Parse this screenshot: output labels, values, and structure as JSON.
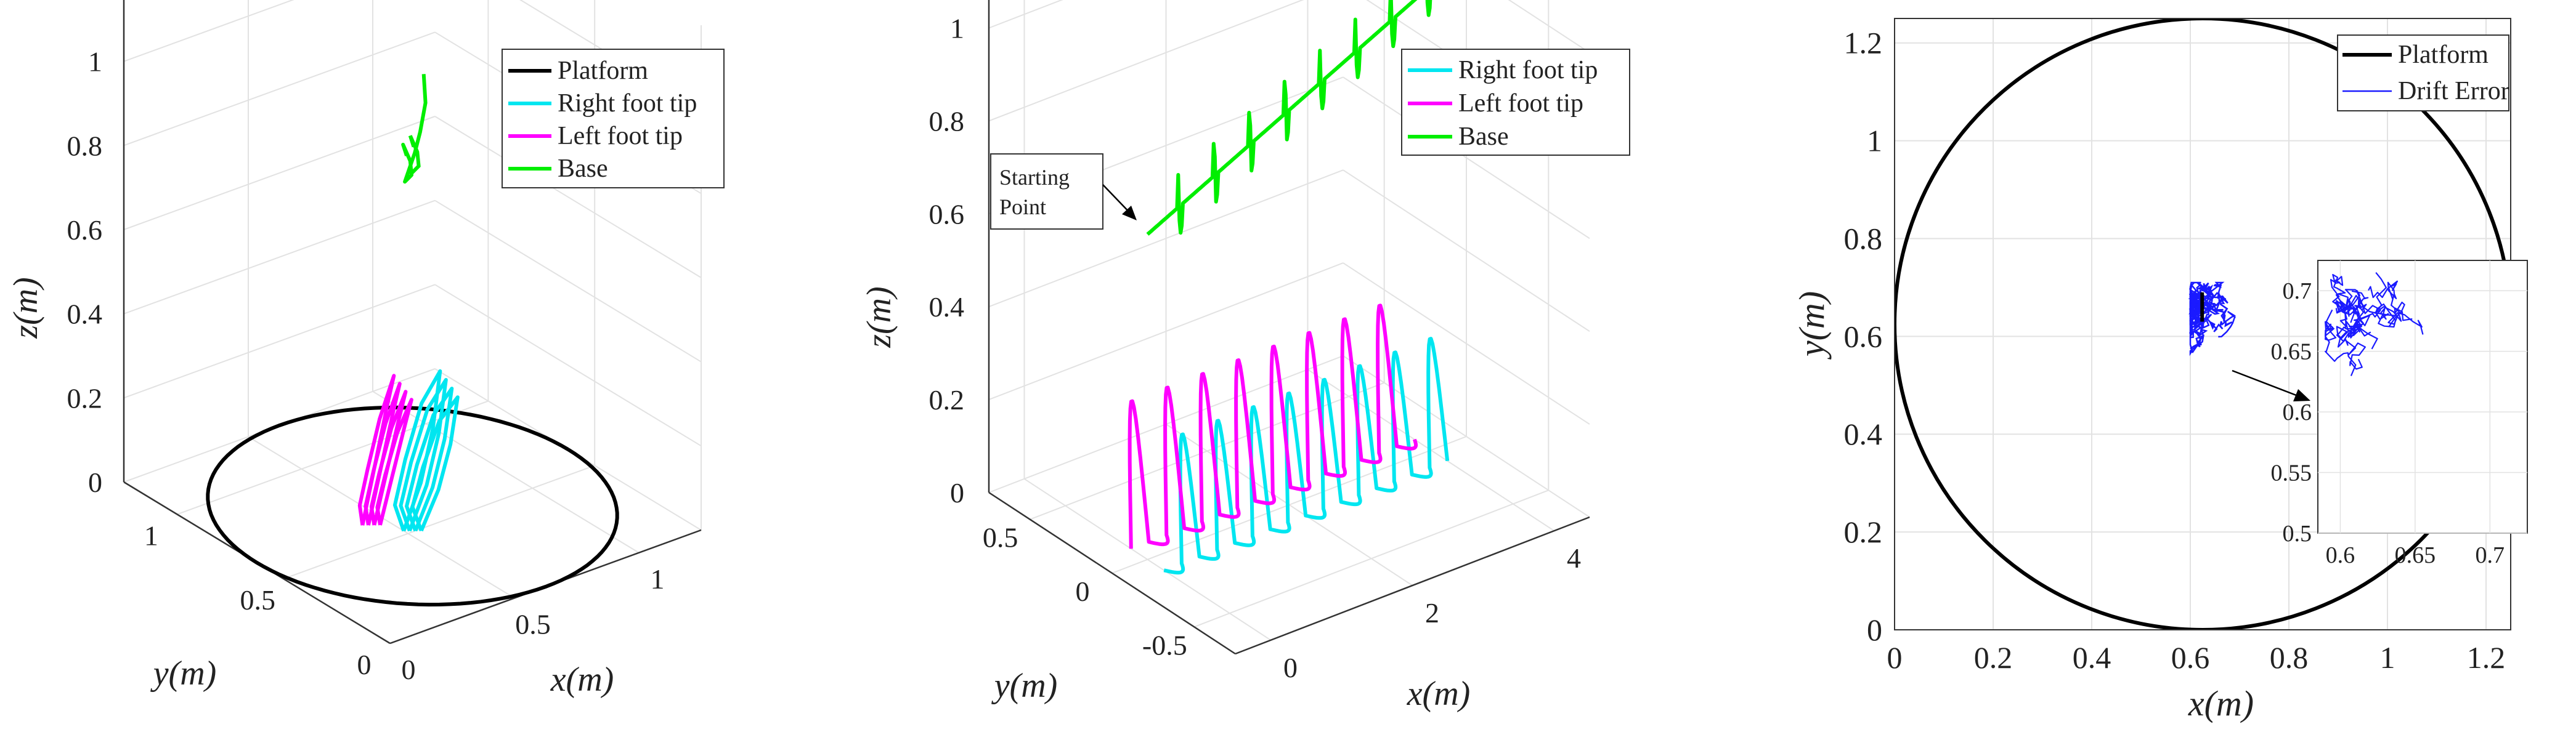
{
  "colors": {
    "platform": "#000000",
    "right_foot": "#00e6f0",
    "left_foot": "#ff00ff",
    "base": "#00ee00",
    "drift": "#1a1aff",
    "grid": "#e2e2e2",
    "axis": "#333333"
  },
  "chart_data": [
    {
      "type": "line",
      "projection": "3d",
      "title": "",
      "xlabel": "x(m)",
      "ylabel": "y(m)",
      "zlabel": "z(m)",
      "xlim": [
        0,
        1.25
      ],
      "ylim": [
        0,
        1.25
      ],
      "zlim": [
        0,
        1.2
      ],
      "x_ticks": [
        "0",
        "0.5",
        "1"
      ],
      "y_ticks": [
        "0",
        "0.5",
        "1"
      ],
      "z_ticks": [
        "0",
        "0.2",
        "0.4",
        "0.6",
        "0.8",
        "1"
      ],
      "legend": {
        "placement": "top-right",
        "entries": [
          "Platform",
          "Right foot tip",
          "Left foot tip",
          "Base"
        ]
      },
      "series": [
        {
          "name": "Platform",
          "circle_center_xy": [
            0.625,
            0.625
          ],
          "radius": 0.625,
          "z": 0
        },
        {
          "name": "Right foot tip",
          "x": [
            0.5,
            0.62,
            0.72,
            0.8,
            0.76,
            0.66,
            0.55,
            0.5
          ],
          "y": [
            0.52,
            0.58,
            0.64,
            0.7,
            0.74,
            0.7,
            0.62,
            0.52
          ],
          "z": [
            0.0,
            0.07,
            0.16,
            0.26,
            0.18,
            0.08,
            0.02,
            0.0
          ]
        },
        {
          "name": "Left foot tip",
          "x": [
            0.42,
            0.52,
            0.62,
            0.7,
            0.66,
            0.56,
            0.46,
            0.42
          ],
          "y": [
            0.62,
            0.68,
            0.74,
            0.8,
            0.82,
            0.76,
            0.68,
            0.62
          ],
          "z": [
            0.0,
            0.1,
            0.2,
            0.24,
            0.14,
            0.06,
            0.02,
            0.0
          ]
        },
        {
          "name": "Base",
          "x": [
            0.58,
            0.6,
            0.62,
            0.6,
            0.59,
            0.63,
            0.66,
            0.69,
            0.7
          ],
          "y": [
            0.6,
            0.64,
            0.63,
            0.6,
            0.62,
            0.62,
            0.63,
            0.64,
            0.66
          ],
          "z": [
            0.85,
            0.86,
            0.82,
            0.8,
            0.78,
            0.84,
            0.88,
            0.94,
            1.0
          ]
        }
      ]
    },
    {
      "type": "line",
      "projection": "3d",
      "title": "",
      "xlabel": "x(m)",
      "ylabel": "y(m)",
      "zlabel": "z(m)",
      "xlim": [
        -0.5,
        4.5
      ],
      "ylim": [
        -0.75,
        0.75
      ],
      "zlim": [
        0,
        1.1
      ],
      "x_ticks": [
        "0",
        "2",
        "4"
      ],
      "y_ticks": [
        "-0.5",
        "0",
        "0.5"
      ],
      "z_ticks": [
        "0",
        "0.2",
        "0.4",
        "0.6",
        "0.8",
        "1"
      ],
      "legend": {
        "placement": "top-right",
        "entries": [
          "Right foot tip",
          "Left foot tip",
          "Base"
        ]
      },
      "annotation": {
        "text": [
          "Starting",
          "Point"
        ],
        "target_series": "Base",
        "target_x": 0.0
      },
      "walk": {
        "x_start": 0.0,
        "x_end": 4.0,
        "steps": 8
      },
      "series": [
        {
          "name": "Right foot tip",
          "y_offset": -0.1,
          "step_height": 0.26
        },
        {
          "name": "Left foot tip",
          "y_offset": 0.1,
          "step_height": 0.3
        },
        {
          "name": "Base",
          "z_start": 0.7,
          "z_end": 1.0
        }
      ]
    },
    {
      "type": "line",
      "title": "",
      "xlabel": "x(m)",
      "ylabel": "y(m)",
      "xlim": [
        0,
        1.25
      ],
      "ylim": [
        0,
        1.25
      ],
      "x_ticks": [
        0,
        0.2,
        0.4,
        0.6,
        0.8,
        1,
        1.2
      ],
      "y_ticks": [
        0,
        0.2,
        0.4,
        0.6,
        0.8,
        1,
        1.2
      ],
      "grid": true,
      "legend": {
        "placement": "top-right",
        "entries": [
          "Platform",
          "Drift Error"
        ]
      },
      "series": [
        {
          "name": "Platform",
          "circle_center": [
            0.625,
            0.625
          ],
          "radius": 0.625
        },
        {
          "name": "Drift Error",
          "x_range": [
            0.6,
            0.72
          ],
          "y_range": [
            0.55,
            0.71
          ]
        }
      ],
      "inset": {
        "xlim": [
          0.585,
          0.725
        ],
        "ylim": [
          0.5,
          0.725
        ],
        "x_ticks": [
          0.6,
          0.65,
          0.7
        ],
        "y_ticks": [
          0.5,
          0.55,
          0.6,
          0.65,
          0.7
        ],
        "x_tick_labels": [
          "0.6",
          "0.65",
          "0.7"
        ],
        "y_tick_labels": [
          "0.5",
          "0.55",
          "0.6",
          "0.65",
          "0.7"
        ]
      }
    }
  ]
}
